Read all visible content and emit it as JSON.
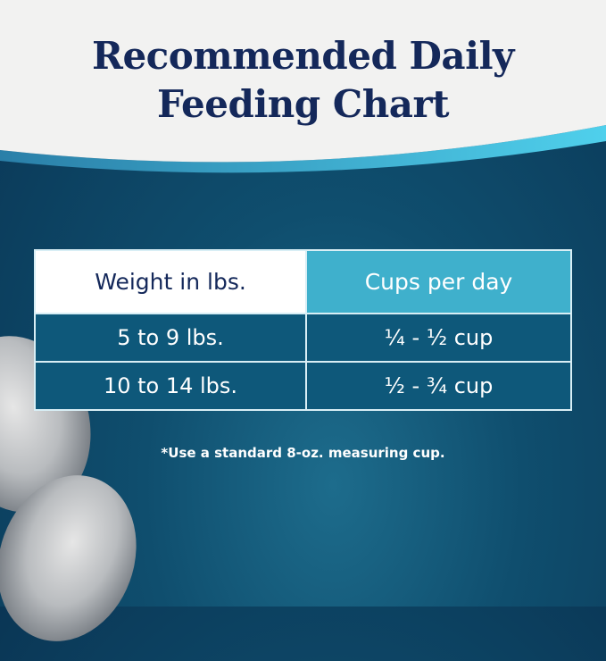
{
  "title": {
    "line1": "Recommended Daily",
    "line2": "Feeding Chart"
  },
  "table": {
    "headers": [
      "Weight in lbs.",
      "Cups per day"
    ],
    "rows": [
      [
        "5 to 9 lbs.",
        "¼ - ½ cup"
      ],
      [
        "10 to 14 lbs.",
        "½ - ¾ cup"
      ]
    ]
  },
  "note": "*Use a standard 8-oz. measuring cup.",
  "colors": {
    "navy": "#14285a",
    "header_cyan": "#3fb0cc",
    "row_blue": "#0e587a",
    "background": "#0f4e6e"
  }
}
